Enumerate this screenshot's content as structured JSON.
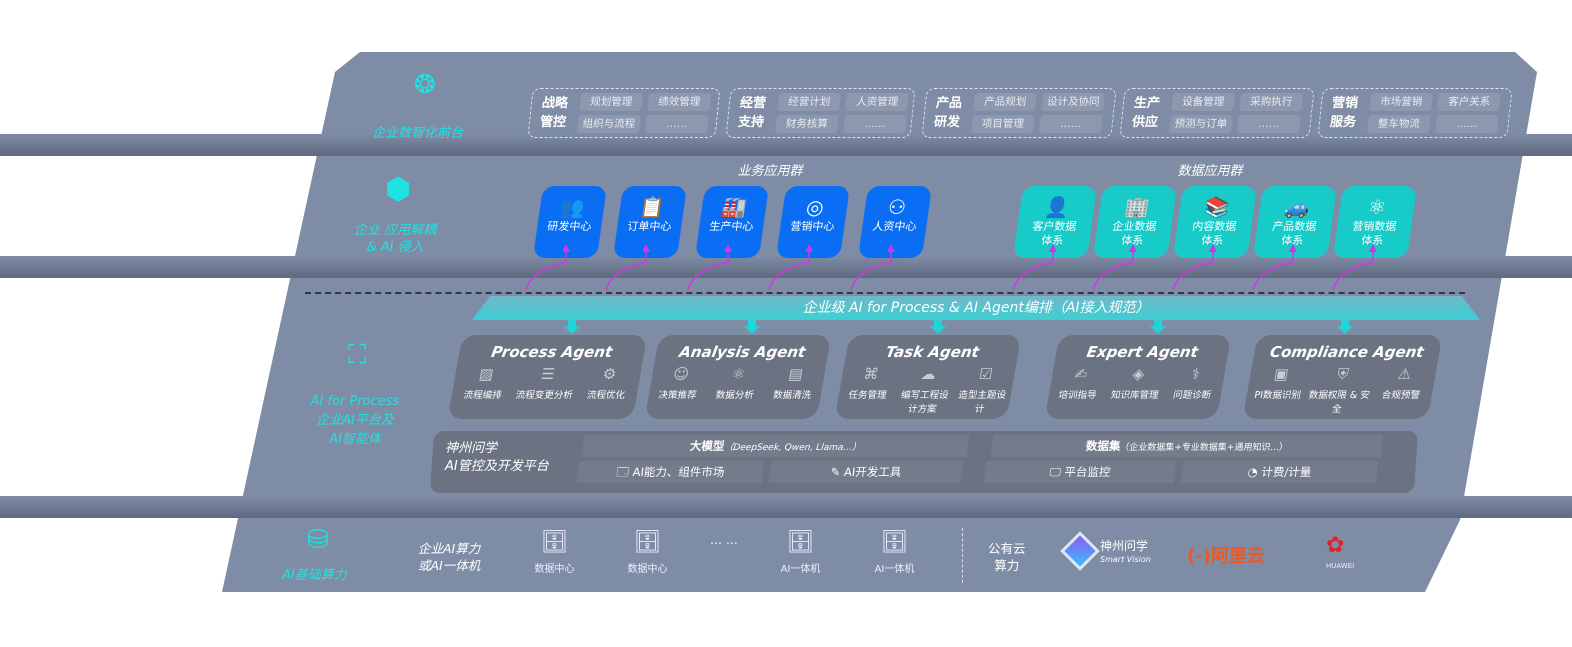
{
  "colors": {
    "board": "#7f8ca5",
    "accent_cyan": "#1de3e3",
    "business_blue": "#0a6ef4",
    "data_teal": "#17cbc9",
    "arrow_magenta": "#d633e6",
    "agent_card": "#6b7282"
  },
  "layers": {
    "front": {
      "label": "企业数智化前台",
      "icon": "brain-icon"
    },
    "app": {
      "label_line1": "企业 应用解耦",
      "label_line2": "& AI 侵入",
      "icon": "molecule-hub-icon"
    },
    "process": {
      "label_line1": "AI for Process",
      "label_line2": "企业AI平台及",
      "label_line3": "AI智能体",
      "icon": "face-scan-icon"
    },
    "infra": {
      "label": "AI基础算力",
      "icon": "database-icon"
    }
  },
  "front_groups": [
    {
      "title": "战略管控",
      "items": [
        "规划管理",
        "绩效管理",
        "组织与流程",
        "……"
      ]
    },
    {
      "title": "经营支持",
      "items": [
        "经营计划",
        "人资管理",
        "财务核算",
        "……"
      ]
    },
    {
      "title": "产品研发",
      "items": [
        "产品规划",
        "设计及协同",
        "项目管理",
        "……"
      ]
    },
    {
      "title": "生产供应",
      "items": [
        "设备管理",
        "采购执行",
        "预测与订单",
        "……"
      ]
    },
    {
      "title": "营销服务",
      "items": [
        "市场营销",
        "客户关系",
        "整车物流",
        "……"
      ]
    }
  ],
  "business_apps": {
    "title": "业务应用群",
    "items": [
      {
        "label": "研发中心",
        "icon": "team-icon"
      },
      {
        "label": "订单中心",
        "icon": "clipboard-icon"
      },
      {
        "label": "生产中心",
        "icon": "factory-icon"
      },
      {
        "label": "营销中心",
        "icon": "target-icon"
      },
      {
        "label": "人资中心",
        "icon": "people-icon"
      }
    ]
  },
  "data_apps": {
    "title": "数据应用群",
    "items": [
      {
        "label": "客户数据体系",
        "icon": "user-icon"
      },
      {
        "label": "企业数据体系",
        "icon": "building-icon"
      },
      {
        "label": "内容数据体系",
        "icon": "books-icon"
      },
      {
        "label": "产品数据体系",
        "icon": "car-icon"
      },
      {
        "label": "营销数据体系",
        "icon": "atom-icon"
      }
    ]
  },
  "banner": "企业级 AI for Process & AI Agent编排（AI接入规范）",
  "agents": [
    {
      "name": "Process Agent",
      "items": [
        {
          "label": "流程编排",
          "icon": "chart-window-icon"
        },
        {
          "label": "流程变更分析",
          "icon": "list-icon"
        },
        {
          "label": "流程优化",
          "icon": "optimize-icon"
        }
      ]
    },
    {
      "name": "Analysis Agent",
      "items": [
        {
          "label": "决策推荐",
          "icon": "head-icon"
        },
        {
          "label": "数据分析",
          "icon": "gear-atom-icon"
        },
        {
          "label": "数据清洗",
          "icon": "document-clean-icon"
        }
      ]
    },
    {
      "name": "Task Agent",
      "items": [
        {
          "label": "任务管理",
          "icon": "network-icon"
        },
        {
          "label": "编写工程设计方案",
          "icon": "cloud-icon"
        },
        {
          "label": "造型主题设计",
          "icon": "checklist-icon"
        }
      ]
    },
    {
      "name": "Expert Agent",
      "items": [
        {
          "label": "培训指导",
          "icon": "trainer-icon"
        },
        {
          "label": "知识库管理",
          "icon": "layers-icon"
        },
        {
          "label": "问题诊断",
          "icon": "diagnosis-icon"
        }
      ]
    },
    {
      "name": "Compliance Agent",
      "items": [
        {
          "label": "PI数据识别",
          "icon": "id-card-icon"
        },
        {
          "label": "数据权限 & 安全",
          "icon": "shield-icon"
        },
        {
          "label": "合规预警",
          "icon": "alert-icon"
        }
      ]
    }
  ],
  "platform": {
    "name_line1": "神州问学",
    "name_line2": "AI管控及开发平台",
    "model": "大模型",
    "model_note": "（DeepSeek, Qwen, Llama...）",
    "market": "AI能力、组件市场",
    "devtools": "AI开发工具",
    "dataset": "数据集",
    "dataset_note": "（企业数据集+专业数据集+通用知识...）",
    "monitor": "平台监控",
    "billing": "计费/计量"
  },
  "infra": {
    "onprem_line1": "企业AI算力",
    "onprem_line2": "或AI一体机",
    "servers": [
      "数据中心",
      "数据中心",
      "AI一体机",
      "AI一体机"
    ],
    "ellipsis": "… …",
    "cloud_line1": "公有云",
    "cloud_line2": "算力",
    "providers": [
      {
        "name": "神州问学",
        "sub": "Smart Vision"
      },
      {
        "name": "阿里云",
        "mark": "(-)"
      },
      {
        "name": "HUAWEI"
      }
    ]
  }
}
